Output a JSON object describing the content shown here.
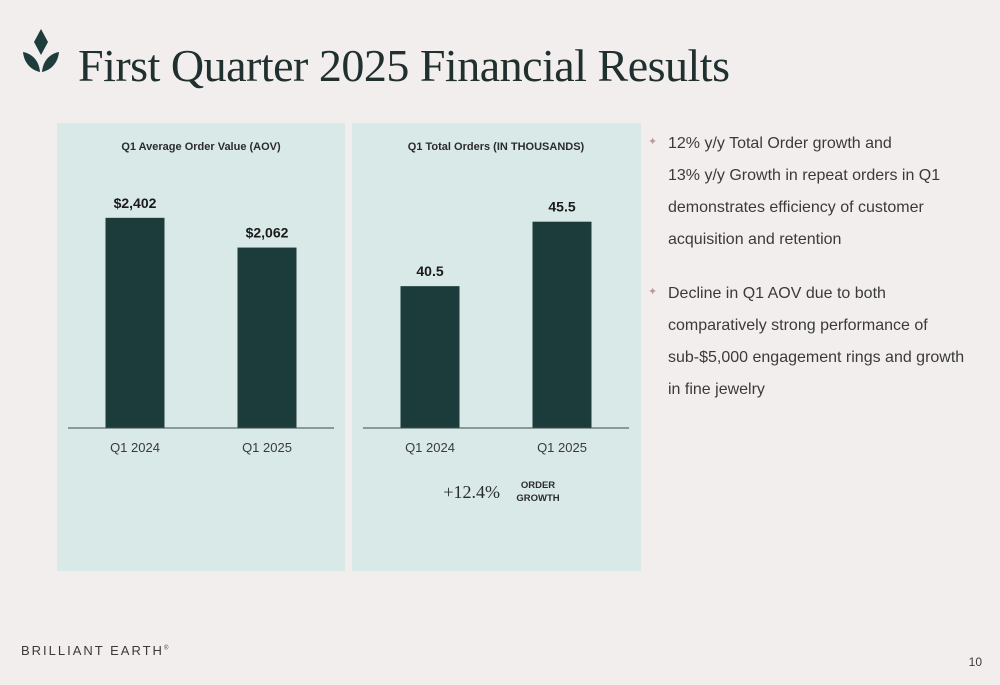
{
  "header": {
    "title": "First Quarter 2025 Financial Results",
    "logo_icon": "diamond-leaf-icon",
    "logo_color": "#1f3c3c"
  },
  "colors": {
    "bar": "#1b3c3b",
    "panel": "#d8e9e8",
    "background": "#f3eeee",
    "bullet_mark": "#b99aa3"
  },
  "chart_data": [
    {
      "type": "bar",
      "title": "Q1 Average Order Value (AOV)",
      "categories": [
        "Q1 2024",
        "Q1 2025"
      ],
      "values": [
        2402,
        2062
      ],
      "value_labels": [
        "$2,402",
        "$2,062"
      ],
      "ylim": [
        0,
        2800
      ],
      "xlabel": "",
      "ylabel": "",
      "grid": false
    },
    {
      "type": "bar",
      "title": "Q1 Total Orders (IN THOUSANDS)",
      "categories": [
        "Q1 2024",
        "Q1 2025"
      ],
      "values": [
        40.5,
        45.5
      ],
      "value_labels": [
        "40.5",
        "45.5"
      ],
      "ylim": [
        29.5,
        48.5
      ],
      "xlabel": "",
      "ylabel": "",
      "grid": false,
      "annotation": {
        "value": "+12.4%",
        "label_line1": "ORDER",
        "label_line2": "GROWTH"
      }
    }
  ],
  "bullets": [
    {
      "mark": "✦",
      "lines": [
        "12% y/y Total Order growth and",
        "13% y/y Growth in repeat orders in Q1",
        "demonstrates efficiency of customer",
        "acquisition and retention"
      ]
    },
    {
      "mark": "✦",
      "lines": [
        "Decline in Q1 AOV due to both",
        "comparatively strong performance of",
        "sub-$5,000 engagement rings and growth",
        "in fine jewelry"
      ]
    }
  ],
  "footer": {
    "brand": "BRILLIANT EARTH",
    "brand_mark": "®",
    "page_number": "10"
  }
}
